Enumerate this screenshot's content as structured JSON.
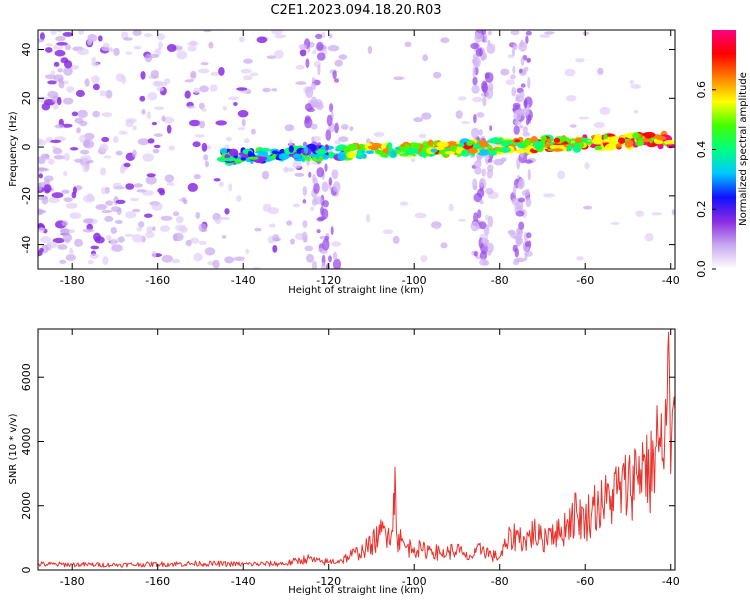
{
  "title": "C2E1.2023.094.18.20.R03",
  "chart_data": [
    {
      "type": "heatmap",
      "xlabel": "Height of straight line (km)",
      "ylabel": "Frequency (Hz)",
      "xlim": [
        -188,
        -39
      ],
      "ylim": [
        -50,
        48
      ],
      "xticks": [
        -180,
        -160,
        -140,
        -120,
        -100,
        -80,
        -60,
        -40
      ],
      "yticks": [
        -40,
        -20,
        0,
        20,
        40
      ],
      "colorbar": {
        "label": "Normalized spectral amplitude",
        "range": [
          0.0,
          0.8
        ],
        "ticks": [
          0.0,
          0.2,
          0.4,
          0.6
        ],
        "colormap": [
          "#ffffff",
          "#c8a8f0",
          "#8a2be2",
          "#1010ff",
          "#00c8ff",
          "#00ff80",
          "#40ff00",
          "#ffff00",
          "#ff8000",
          "#ff0000",
          "#ff0080"
        ]
      },
      "signal_band": {
        "x_range": [
          -145,
          -40
        ],
        "frequency_center_start": -4,
        "frequency_center_end": 3
      },
      "stripes_x": [
        -122,
        -84,
        -75
      ]
    },
    {
      "type": "line",
      "xlabel": "Height of straight line (km)",
      "ylabel": "SNR (10 * v/v)",
      "xlim": [
        -188,
        -39
      ],
      "ylim": [
        0,
        7500
      ],
      "xticks": [
        -180,
        -160,
        -140,
        -120,
        -100,
        -80,
        -60,
        -40
      ],
      "yticks": [
        0,
        2000,
        4000,
        6000
      ],
      "color": "#e8322c",
      "x": [
        -188,
        -180,
        -170,
        -160,
        -150,
        -140,
        -130,
        -125,
        -122,
        -120,
        -117,
        -115,
        -112,
        -110,
        -108,
        -106,
        -105,
        -104.5,
        -104,
        -103,
        -102,
        -100,
        -98,
        -96,
        -94,
        -92,
        -90,
        -88,
        -86,
        -84,
        -82,
        -80,
        -78,
        -76,
        -74,
        -72,
        -70,
        -68,
        -66,
        -64,
        -62,
        -60,
        -58,
        -56,
        -54,
        -52,
        -50,
        -48,
        -46,
        -45,
        -44,
        -43,
        -42,
        -41,
        -40.5,
        -40,
        -39
      ],
      "y": [
        180,
        170,
        160,
        180,
        200,
        180,
        200,
        350,
        250,
        250,
        300,
        450,
        600,
        800,
        1100,
        1300,
        1200,
        3200,
        1000,
        900,
        700,
        700,
        600,
        650,
        500,
        550,
        650,
        400,
        450,
        700,
        450,
        400,
        900,
        1100,
        900,
        1200,
        900,
        1300,
        1100,
        1500,
        1800,
        1500,
        2000,
        2000,
        2300,
        2500,
        2600,
        3000,
        3500,
        2800,
        3500,
        4200,
        3400,
        4500,
        7400,
        3000,
        5000
      ]
    }
  ]
}
